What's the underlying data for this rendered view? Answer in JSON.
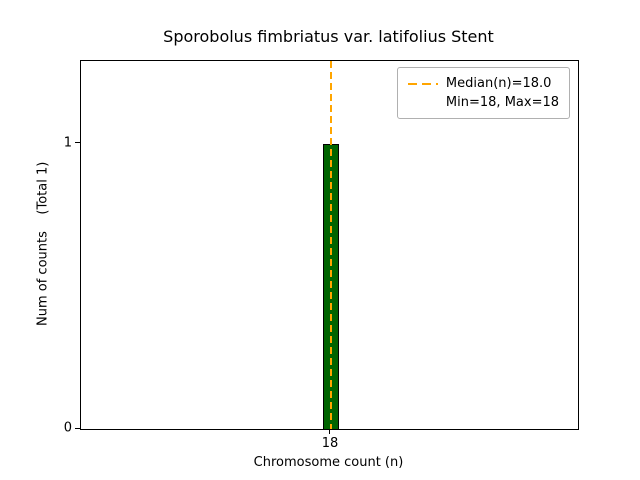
{
  "chart_data": {
    "type": "bar",
    "title": "Sporobolus fimbriatus var. latifolius Stent",
    "xlabel": "Chromosome count (n)",
    "ylabel": "Num of counts    (Total 1)",
    "categories": [
      "18"
    ],
    "values": [
      1
    ],
    "total_counts": 1,
    "ylim": [
      0,
      1.29
    ],
    "yticks": [
      {
        "value": 0,
        "label": "0"
      },
      {
        "value": 1,
        "label": "1"
      }
    ],
    "xticks": [
      {
        "category_index": 0,
        "label": "18"
      }
    ],
    "grid": false,
    "bar_color": "#006400",
    "bar_edge_color": "#000000",
    "median_line": {
      "value": 18,
      "color": "#ffa500",
      "style": "dashed"
    },
    "legend": {
      "position": "upper right",
      "entries": [
        {
          "label": "Median(n)=18.0",
          "marker": "dashed-line",
          "color": "#ffa500"
        },
        {
          "label": "Min=18, Max=18",
          "marker": "none",
          "color": ""
        }
      ]
    },
    "stats": {
      "median": 18.0,
      "min": 18,
      "max": 18
    }
  }
}
